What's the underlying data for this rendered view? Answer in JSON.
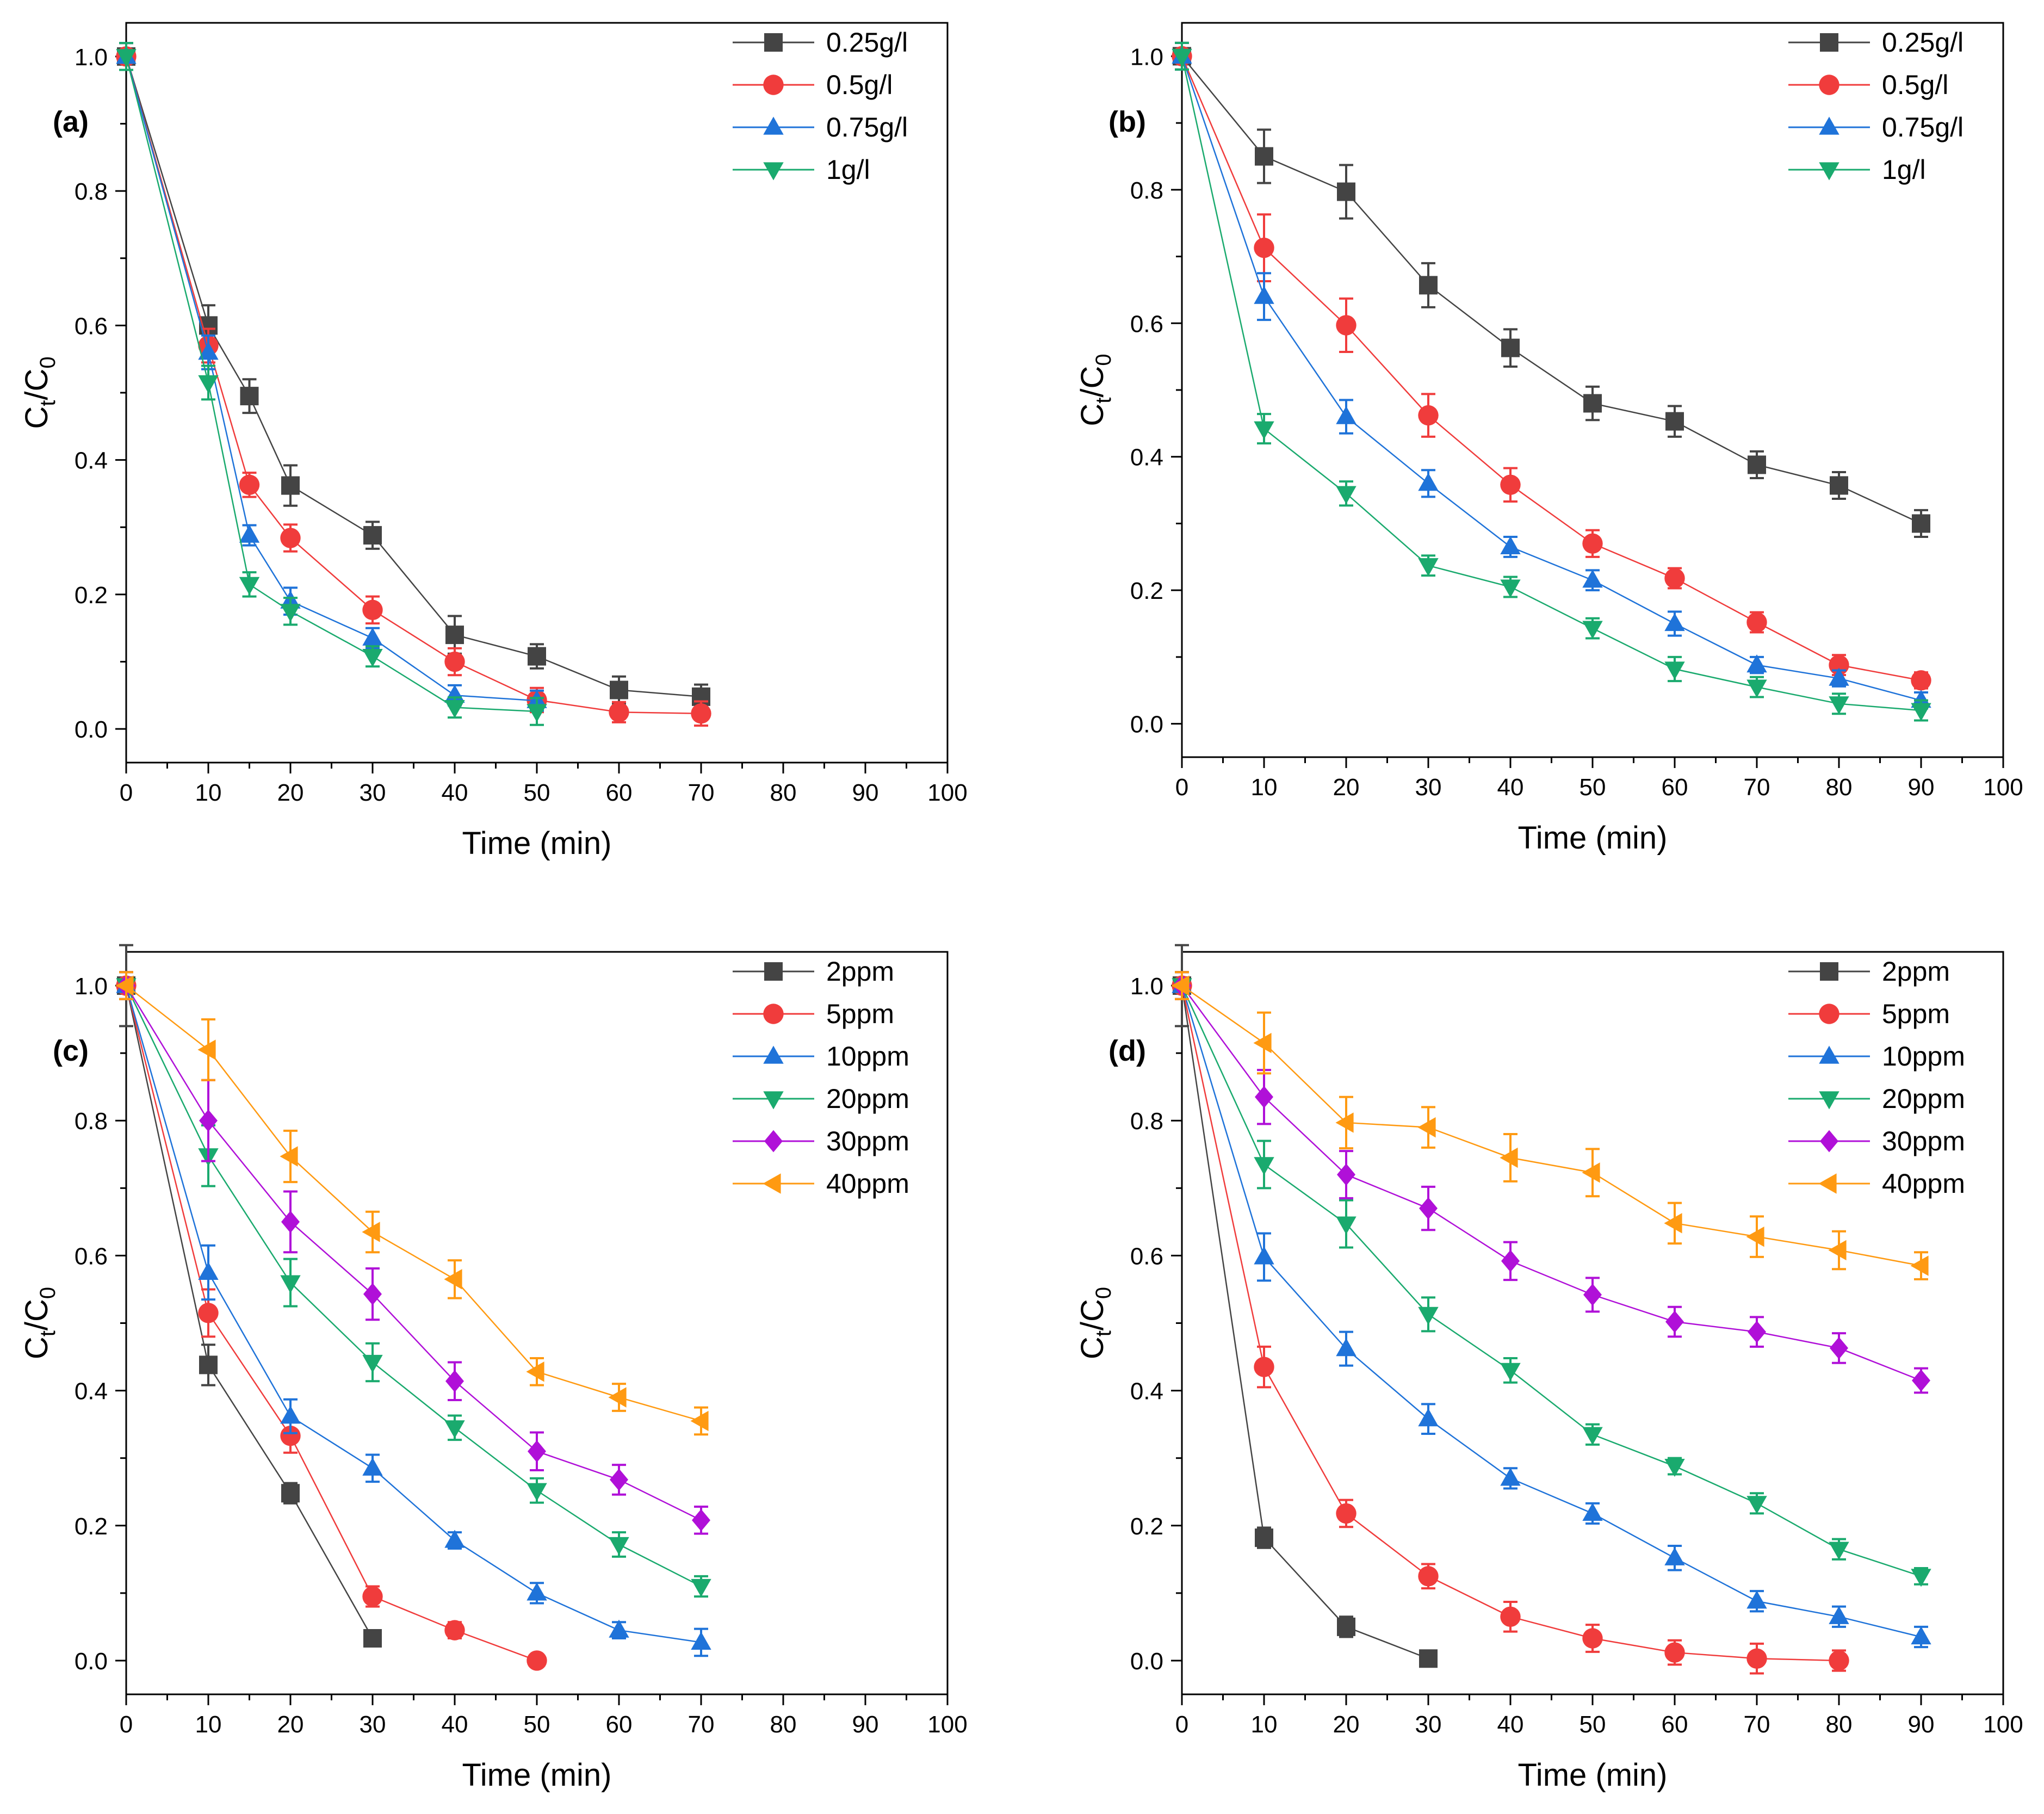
{
  "colors": {
    "black": "#444444",
    "red": "#f03c3c",
    "blue": "#1f73d9",
    "green": "#1aaa6e",
    "purple": "#b010d8",
    "orange": "#ff9a12"
  },
  "chart_data": [
    {
      "type": "line",
      "panel_label": "(a)",
      "xlabel": "Time (min)",
      "ylabel_main": "C",
      "ylabel_sub1": "t",
      "ylabel_mid": "/C",
      "ylabel_sub2": "0",
      "xlim": [
        0,
        100
      ],
      "ylim": [
        -0.05,
        1.05
      ],
      "xticks": [
        0,
        10,
        20,
        30,
        40,
        50,
        60,
        70,
        80,
        90,
        100
      ],
      "xtick_labels": [
        "0",
        "10",
        "20",
        "30",
        "40",
        "50",
        "60",
        "70",
        "80",
        "90",
        "100"
      ],
      "yticks": [
        0,
        0.2,
        0.4,
        0.6,
        0.8,
        1.0
      ],
      "ytick_labels": [
        "0.0",
        "0.2",
        "0.4",
        "0.6",
        "0.8",
        "1.0"
      ],
      "legend_position": "top-right",
      "series": [
        {
          "name": "0.25g/l",
          "color": "black",
          "marker": "square",
          "x": [
            0,
            10,
            15,
            20,
            30,
            40,
            50,
            60,
            70
          ],
          "y": [
            1.0,
            0.6,
            0.495,
            0.362,
            0.288,
            0.14,
            0.108,
            0.058,
            0.048
          ],
          "err": [
            0.02,
            0.03,
            0.025,
            0.03,
            0.02,
            0.028,
            0.018,
            0.02,
            0.018
          ]
        },
        {
          "name": "0.5g/l",
          "color": "red",
          "marker": "circle",
          "x": [
            0,
            10,
            15,
            20,
            30,
            40,
            50,
            60,
            70
          ],
          "y": [
            1.0,
            0.57,
            0.363,
            0.284,
            0.177,
            0.1,
            0.043,
            0.025,
            0.023
          ],
          "err": [
            0.02,
            0.025,
            0.018,
            0.02,
            0.02,
            0.02,
            0.018,
            0.015,
            0.018
          ]
        },
        {
          "name": "0.75g/l",
          "color": "blue",
          "marker": "triangle-up",
          "x": [
            0,
            10,
            15,
            20,
            30,
            40,
            50
          ],
          "y": [
            1.0,
            0.56,
            0.288,
            0.19,
            0.135,
            0.05,
            0.042
          ],
          "err": [
            0.02,
            0.025,
            0.015,
            0.02,
            0.015,
            0.015,
            0.015
          ]
        },
        {
          "name": "1g/l",
          "color": "green",
          "marker": "triangle-down",
          "x": [
            0,
            10,
            15,
            20,
            30,
            40,
            50
          ],
          "y": [
            1.0,
            0.515,
            0.215,
            0.175,
            0.108,
            0.032,
            0.026
          ],
          "err": [
            0.02,
            0.025,
            0.018,
            0.02,
            0.015,
            0.015,
            0.02
          ]
        }
      ]
    },
    {
      "type": "line",
      "panel_label": "(b)",
      "xlabel": "Time (min)",
      "ylabel_main": "C",
      "ylabel_sub1": "t",
      "ylabel_mid": "/C",
      "ylabel_sub2": "0",
      "xlim": [
        0,
        100
      ],
      "ylim": [
        -0.05,
        1.05
      ],
      "xticks": [
        0,
        10,
        20,
        30,
        40,
        50,
        60,
        70,
        80,
        90,
        100
      ],
      "xtick_labels": [
        "0",
        "10",
        "20",
        "30",
        "40",
        "50",
        "60",
        "70",
        "80",
        "90",
        "100"
      ],
      "yticks": [
        0,
        0.2,
        0.4,
        0.6,
        0.8,
        1.0
      ],
      "ytick_labels": [
        "0.0",
        "0.2",
        "0.4",
        "0.6",
        "0.8",
        "1.0"
      ],
      "legend_position": "top-right",
      "series": [
        {
          "name": "0.25g/l",
          "color": "black",
          "marker": "square",
          "x": [
            0,
            10,
            20,
            30,
            40,
            50,
            60,
            70,
            80,
            90
          ],
          "y": [
            1.0,
            0.85,
            0.797,
            0.657,
            0.563,
            0.48,
            0.453,
            0.388,
            0.357,
            0.3
          ],
          "err": [
            0.02,
            0.04,
            0.04,
            0.033,
            0.028,
            0.025,
            0.023,
            0.02,
            0.02,
            0.02
          ]
        },
        {
          "name": "0.5g/l",
          "color": "red",
          "marker": "circle",
          "x": [
            0,
            10,
            20,
            30,
            40,
            50,
            60,
            70,
            80,
            90
          ],
          "y": [
            1.0,
            0.713,
            0.597,
            0.462,
            0.358,
            0.27,
            0.218,
            0.152,
            0.088,
            0.065
          ],
          "err": [
            0.02,
            0.05,
            0.04,
            0.032,
            0.025,
            0.02,
            0.015,
            0.015,
            0.015,
            0.012
          ]
        },
        {
          "name": "0.75g/l",
          "color": "blue",
          "marker": "triangle-up",
          "x": [
            0,
            10,
            20,
            30,
            40,
            50,
            60,
            70,
            80,
            90
          ],
          "y": [
            1.0,
            0.64,
            0.46,
            0.36,
            0.265,
            0.215,
            0.15,
            0.088,
            0.068,
            0.035
          ],
          "err": [
            0.02,
            0.035,
            0.025,
            0.02,
            0.015,
            0.015,
            0.018,
            0.012,
            0.012,
            0.012
          ]
        },
        {
          "name": "1g/l",
          "color": "green",
          "marker": "triangle-down",
          "x": [
            0,
            10,
            20,
            30,
            40,
            50,
            60,
            70,
            80,
            90
          ],
          "y": [
            1.0,
            0.442,
            0.345,
            0.237,
            0.205,
            0.143,
            0.082,
            0.055,
            0.03,
            0.02
          ],
          "err": [
            0.02,
            0.022,
            0.018,
            0.015,
            0.015,
            0.015,
            0.018,
            0.015,
            0.015,
            0.015
          ]
        }
      ]
    },
    {
      "type": "line",
      "panel_label": "(c)",
      "xlabel": "Time (min)",
      "ylabel_main": "C",
      "ylabel_sub1": "t",
      "ylabel_mid": "/C",
      "ylabel_sub2": "0",
      "xlim": [
        0,
        100
      ],
      "ylim": [
        -0.05,
        1.05
      ],
      "xticks": [
        0,
        10,
        20,
        30,
        40,
        50,
        60,
        70,
        80,
        90,
        100
      ],
      "xtick_labels": [
        "0",
        "10",
        "20",
        "30",
        "40",
        "50",
        "60",
        "70",
        "80",
        "90",
        "100"
      ],
      "yticks": [
        0,
        0.2,
        0.4,
        0.6,
        0.8,
        1.0
      ],
      "ytick_labels": [
        "0.0",
        "0.2",
        "0.4",
        "0.6",
        "0.8",
        "1.0"
      ],
      "legend_position": "top-right",
      "series": [
        {
          "name": "2ppm",
          "color": "black",
          "marker": "square",
          "x": [
            0,
            10,
            20,
            30
          ],
          "y": [
            1.0,
            0.438,
            0.248,
            0.033
          ],
          "err": [
            0.06,
            0.03,
            0.015,
            0.008
          ]
        },
        {
          "name": "5ppm",
          "color": "red",
          "marker": "circle",
          "x": [
            0,
            10,
            20,
            30,
            40,
            50
          ],
          "y": [
            1.0,
            0.515,
            0.333,
            0.095,
            0.045,
            0.0
          ],
          "err": [
            0.02,
            0.035,
            0.025,
            0.015,
            0.012,
            0.008
          ]
        },
        {
          "name": "10ppm",
          "color": "blue",
          "marker": "triangle-up",
          "x": [
            0,
            10,
            20,
            30,
            40,
            50,
            60,
            70
          ],
          "y": [
            1.0,
            0.575,
            0.362,
            0.285,
            0.178,
            0.1,
            0.045,
            0.027
          ],
          "err": [
            0.02,
            0.04,
            0.025,
            0.02,
            0.012,
            0.015,
            0.012,
            0.02
          ]
        },
        {
          "name": "20ppm",
          "color": "green",
          "marker": "triangle-down",
          "x": [
            0,
            10,
            20,
            30,
            40,
            50,
            60,
            70
          ],
          "y": [
            1.0,
            0.748,
            0.56,
            0.442,
            0.345,
            0.252,
            0.172,
            0.11
          ],
          "err": [
            0.02,
            0.045,
            0.035,
            0.028,
            0.018,
            0.018,
            0.018,
            0.015
          ]
        },
        {
          "name": "30ppm",
          "color": "purple",
          "marker": "diamond",
          "x": [
            0,
            10,
            20,
            30,
            40,
            50,
            60,
            70
          ],
          "y": [
            1.0,
            0.8,
            0.65,
            0.543,
            0.414,
            0.31,
            0.268,
            0.208
          ],
          "err": [
            0.02,
            0.06,
            0.045,
            0.038,
            0.028,
            0.028,
            0.022,
            0.02
          ]
        },
        {
          "name": "40ppm",
          "color": "orange",
          "marker": "triangle-left",
          "x": [
            0,
            10,
            20,
            30,
            40,
            50,
            60,
            70
          ],
          "y": [
            1.0,
            0.905,
            0.747,
            0.635,
            0.565,
            0.428,
            0.39,
            0.355
          ],
          "err": [
            0.02,
            0.045,
            0.038,
            0.03,
            0.028,
            0.02,
            0.02,
            0.02
          ]
        }
      ]
    },
    {
      "type": "line",
      "panel_label": "(d)",
      "xlabel": "Time (min)",
      "ylabel_main": "C",
      "ylabel_sub1": "t",
      "ylabel_mid": "/C",
      "ylabel_sub2": "0",
      "xlim": [
        0,
        100
      ],
      "ylim": [
        -0.05,
        1.05
      ],
      "xticks": [
        0,
        10,
        20,
        30,
        40,
        50,
        60,
        70,
        80,
        90,
        100
      ],
      "xtick_labels": [
        "0",
        "10",
        "20",
        "30",
        "40",
        "50",
        "60",
        "70",
        "80",
        "90",
        "100"
      ],
      "yticks": [
        0,
        0.2,
        0.4,
        0.6,
        0.8,
        1.0
      ],
      "ytick_labels": [
        "0.0",
        "0.2",
        "0.4",
        "0.6",
        "0.8",
        "1.0"
      ],
      "legend_position": "top-right",
      "series": [
        {
          "name": "2ppm",
          "color": "black",
          "marker": "square",
          "x": [
            0,
            10,
            20,
            30
          ],
          "y": [
            1.0,
            0.182,
            0.05,
            0.003
          ],
          "err": [
            0.06,
            0.015,
            0.015,
            0.005
          ]
        },
        {
          "name": "5ppm",
          "color": "red",
          "marker": "circle",
          "x": [
            0,
            10,
            20,
            30,
            40,
            50,
            60,
            70,
            80
          ],
          "y": [
            1.0,
            0.435,
            0.218,
            0.125,
            0.065,
            0.033,
            0.012,
            0.003,
            0.0
          ],
          "err": [
            0.02,
            0.03,
            0.02,
            0.018,
            0.022,
            0.02,
            0.018,
            0.022,
            0.015
          ]
        },
        {
          "name": "10ppm",
          "color": "blue",
          "marker": "triangle-up",
          "x": [
            0,
            10,
            20,
            30,
            40,
            50,
            60,
            70,
            80,
            90
          ],
          "y": [
            1.0,
            0.598,
            0.462,
            0.358,
            0.27,
            0.218,
            0.152,
            0.088,
            0.065,
            0.035
          ],
          "err": [
            0.02,
            0.035,
            0.025,
            0.022,
            0.015,
            0.015,
            0.018,
            0.015,
            0.015,
            0.015
          ]
        },
        {
          "name": "20ppm",
          "color": "green",
          "marker": "triangle-down",
          "x": [
            0,
            10,
            20,
            30,
            40,
            50,
            60,
            70,
            80,
            90
          ],
          "y": [
            1.0,
            0.735,
            0.647,
            0.513,
            0.43,
            0.335,
            0.288,
            0.233,
            0.165,
            0.125
          ],
          "err": [
            0.02,
            0.035,
            0.035,
            0.025,
            0.018,
            0.015,
            0.012,
            0.015,
            0.015,
            0.012
          ]
        },
        {
          "name": "30ppm",
          "color": "purple",
          "marker": "diamond",
          "x": [
            0,
            10,
            20,
            30,
            40,
            50,
            60,
            70,
            80,
            90
          ],
          "y": [
            1.0,
            0.835,
            0.72,
            0.67,
            0.592,
            0.542,
            0.502,
            0.487,
            0.463,
            0.415
          ],
          "err": [
            0.02,
            0.04,
            0.035,
            0.032,
            0.028,
            0.025,
            0.022,
            0.022,
            0.022,
            0.018
          ]
        },
        {
          "name": "40ppm",
          "color": "orange",
          "marker": "triangle-left",
          "x": [
            0,
            10,
            20,
            30,
            40,
            50,
            60,
            70,
            80,
            90
          ],
          "y": [
            1.0,
            0.915,
            0.797,
            0.79,
            0.745,
            0.723,
            0.648,
            0.628,
            0.608,
            0.585
          ],
          "err": [
            0.02,
            0.045,
            0.038,
            0.03,
            0.035,
            0.035,
            0.03,
            0.03,
            0.028,
            0.02
          ]
        }
      ]
    }
  ]
}
